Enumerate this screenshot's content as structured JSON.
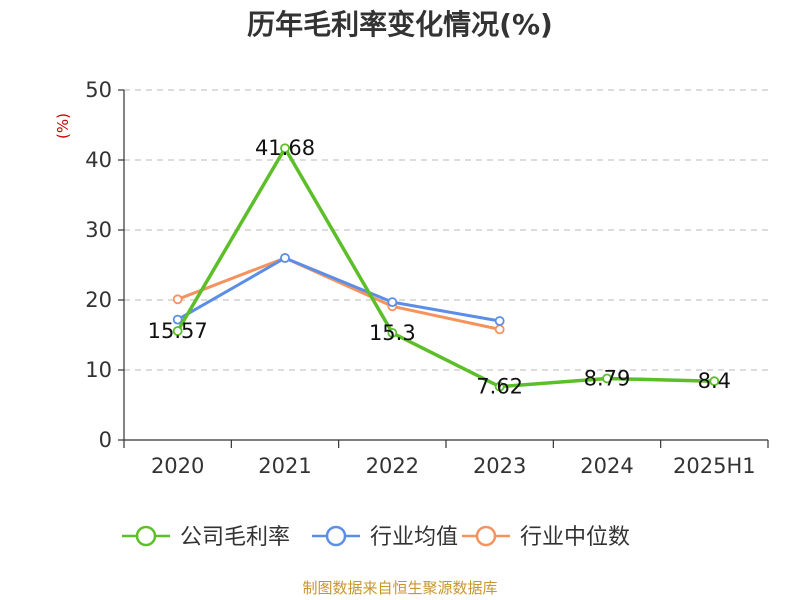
{
  "chart_data": {
    "type": "line",
    "title": "历年毛利率变化情况(%)",
    "ylabel": "(%)",
    "xlabel": "",
    "categories": [
      "2020",
      "2021",
      "2022",
      "2023",
      "2024",
      "2025H1"
    ],
    "ylim": [
      0,
      50
    ],
    "yticks": [
      "0",
      "10",
      "20",
      "30",
      "40",
      "50"
    ],
    "grid": true,
    "legend_position": "bottom",
    "series": [
      {
        "name": "公司毛利率",
        "color": "#5cbf2a",
        "values": [
          15.57,
          41.68,
          15.3,
          7.62,
          8.79,
          8.4
        ],
        "labels": [
          "15.57",
          "41.68",
          "15.3",
          "7.62",
          "8.79",
          "8.4"
        ]
      },
      {
        "name": "行业均值",
        "color": "#5b8ee6",
        "values": [
          17.2,
          26.0,
          19.7,
          17.0,
          null,
          null
        ]
      },
      {
        "name": "行业中位数",
        "color": "#f5925e",
        "values": [
          20.1,
          26.0,
          19.1,
          15.8,
          null,
          null
        ]
      }
    ]
  },
  "source": "制图数据来自恒生聚源数据库"
}
